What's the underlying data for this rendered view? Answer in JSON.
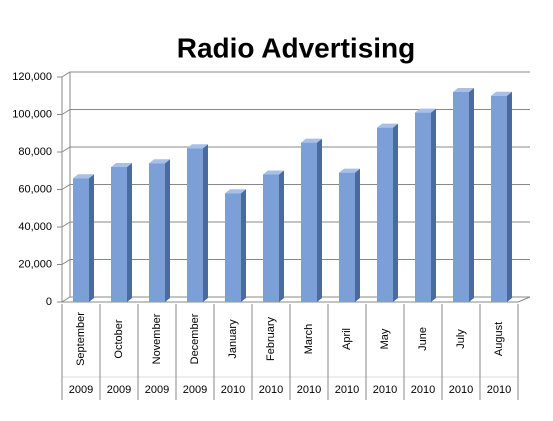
{
  "chart_data": {
    "type": "bar3d",
    "title": "Radio Advertising",
    "categories": [
      "September",
      "October",
      "November",
      "December",
      "January",
      "February",
      "March",
      "April",
      "May",
      "June",
      "July",
      "August"
    ],
    "category_years": [
      "2009",
      "2009",
      "2009",
      "2009",
      "2010",
      "2010",
      "2010",
      "2010",
      "2010",
      "2010",
      "2010",
      "2010"
    ],
    "values": [
      66000,
      72000,
      74000,
      82000,
      58000,
      68000,
      85000,
      69000,
      93000,
      101000,
      112000,
      110000
    ],
    "color": "#7b9fd6",
    "ylim": [
      0,
      120000
    ],
    "yticks": [
      0,
      {
        "value": 20000,
        "label": "20,000"
      },
      {
        "value": 40000,
        "label": "40,000"
      },
      {
        "value": 60000,
        "label": "60,000"
      },
      {
        "value": 80000,
        "label": "80,000"
      },
      {
        "value": 100000,
        "label": "100,000"
      },
      {
        "value": 120000,
        "label": "120,000"
      }
    ],
    "grid": true
  }
}
